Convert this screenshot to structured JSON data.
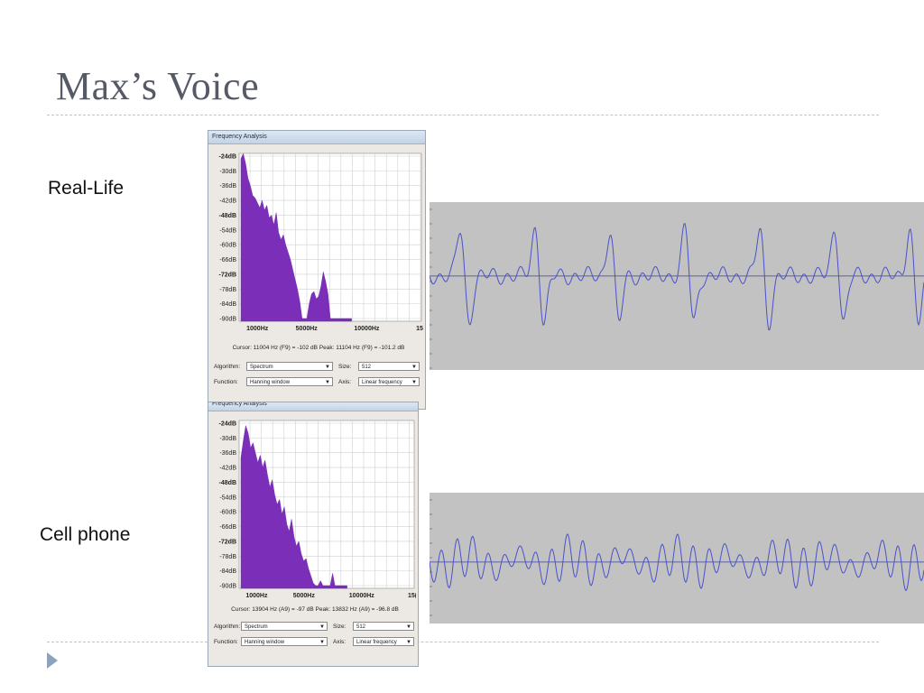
{
  "slide": {
    "title": "Max’s Voice",
    "captions": {
      "real_life": "Real-Life",
      "cell_phone": "Cell phone"
    }
  },
  "colors": {
    "spectrum_fill": "#7b2fb8",
    "waveform_line": "#4a52c8",
    "waveform_bg": "#c2c2c2",
    "title": "#555a66"
  },
  "windows": [
    {
      "title": "Frequency Analysis",
      "db_ticks": [
        "-24dB",
        "-30dB",
        "-36dB",
        "-42dB",
        "-48dB",
        "-54dB",
        "-60dB",
        "-66dB",
        "-72dB",
        "-78dB",
        "-84dB",
        "-90dB"
      ],
      "hz_ticks": [
        "1000Hz",
        "5000Hz",
        "10000Hz",
        "15"
      ],
      "cursor_text": "Cursor: 11004 Hz (F9) = -102 dB   Peak: 11104 Hz (F9) = -101.2 dB",
      "algorithm_label": "Algorithm:",
      "algorithm_value": "Spectrum",
      "size_label": "Size:",
      "size_value": "512",
      "function_label": "Function:",
      "function_value": "Hanning window",
      "axis_label": "Axis:",
      "axis_value": "Linear frequency",
      "spectrum_db": [
        -25,
        -23,
        -27,
        -33,
        -36,
        -40,
        -41,
        -43,
        -45,
        -42,
        -46,
        -44,
        -49,
        -48,
        -52,
        -47,
        -55,
        -58,
        -56,
        -60,
        -63,
        -66,
        -70,
        -74,
        -78,
        -83,
        -90,
        -90,
        -90,
        -84,
        -80,
        -79,
        -82,
        -81,
        -77,
        -71,
        -75,
        -80,
        -90,
        -90,
        -90,
        -90,
        -90,
        -90,
        -90,
        -90,
        -90,
        -90
      ]
    },
    {
      "title": "Frequency Analysis",
      "db_ticks": [
        "-24dB",
        "-30dB",
        "-36dB",
        "-42dB",
        "-48dB",
        "-54dB",
        "-60dB",
        "-66dB",
        "-72dB",
        "-78dB",
        "-84dB",
        "-90dB"
      ],
      "hz_ticks": [
        "1000Hz",
        "5000Hz",
        "10000Hz",
        "15("
      ],
      "cursor_text": "Cursor: 13904 Hz (A9) = -97 dB   Peak: 13832 Hz (A9) = -96.8 dB",
      "algorithm_label": "Algorithm:",
      "algorithm_value": "Spectrum",
      "size_label": "Size:",
      "size_value": "512",
      "function_label": "Function:",
      "function_value": "Hanning window",
      "axis_label": "Axis:",
      "axis_value": "Linear frequency",
      "spectrum_db": [
        -38,
        -31,
        -25,
        -28,
        -34,
        -32,
        -36,
        -40,
        -37,
        -42,
        -39,
        -45,
        -50,
        -47,
        -53,
        -57,
        -55,
        -61,
        -58,
        -65,
        -68,
        -63,
        -70,
        -74,
        -72,
        -77,
        -80,
        -79,
        -83,
        -86,
        -89,
        -90,
        -90,
        -88,
        -90,
        -90,
        -90,
        -90,
        -85,
        -90,
        -90,
        -90,
        -90,
        -90,
        -90
      ]
    }
  ]
}
